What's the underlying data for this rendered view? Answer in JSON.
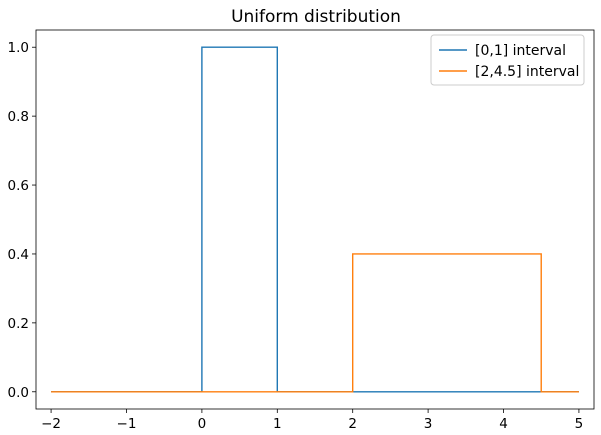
{
  "chart_data": {
    "type": "line",
    "title": "Uniform distribution",
    "xlabel": "",
    "ylabel": "",
    "xlim": [
      -2.2,
      5.2
    ],
    "ylim": [
      -0.05,
      1.05
    ],
    "xticks": [
      -2,
      -1,
      0,
      1,
      2,
      3,
      4,
      5
    ],
    "yticks": [
      0.0,
      0.2,
      0.4,
      0.6,
      0.8,
      1.0
    ],
    "ytick_format": 1,
    "grid": false,
    "legend": "top-right",
    "series": [
      {
        "name": "[0,1] interval",
        "color": "#1f77b4",
        "x": [
          -2,
          0,
          0,
          1,
          1,
          5
        ],
        "y": [
          0,
          0,
          1,
          1,
          0,
          0
        ]
      },
      {
        "name": "[2,4.5] interval",
        "color": "#ff7f0e",
        "x": [
          -2,
          2,
          2,
          4.5,
          4.5,
          5
        ],
        "y": [
          0,
          0,
          0.4,
          0.4,
          0,
          0
        ]
      }
    ]
  }
}
